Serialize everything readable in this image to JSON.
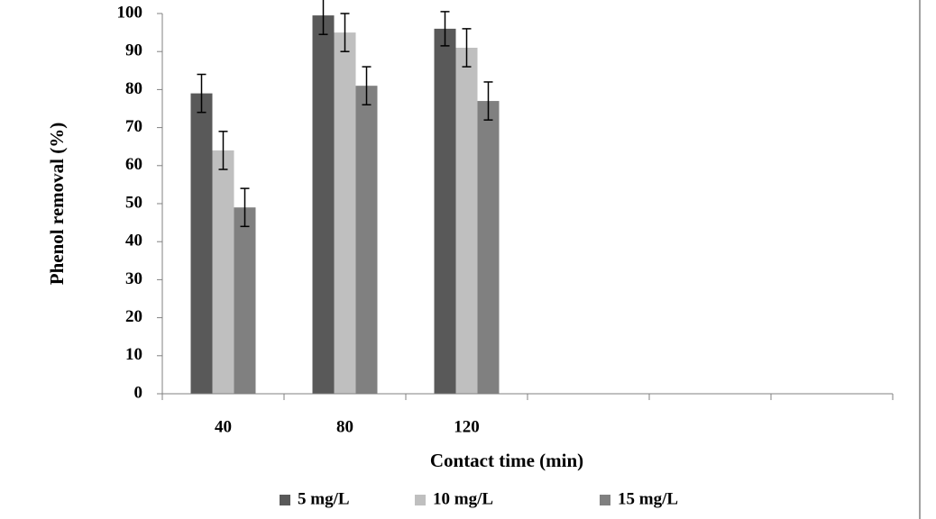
{
  "chart_data": {
    "type": "bar",
    "y_label": "Phenol removal (%)",
    "x_label": "Contact time (min)",
    "categories": [
      "40",
      "80",
      "120",
      null,
      null,
      null
    ],
    "series": [
      {
        "name": "5 mg/L",
        "color": "#595959",
        "values": [
          79,
          99.5,
          96,
          null,
          null,
          null
        ],
        "errors": [
          5,
          5,
          4.5,
          null,
          null,
          null
        ]
      },
      {
        "name": "10 mg/L",
        "color": "#bfbfbf",
        "values": [
          64,
          95,
          91,
          null,
          null,
          null
        ],
        "errors": [
          5,
          5,
          5,
          null,
          null,
          null
        ]
      },
      {
        "name": "15 mg/L",
        "color": "#808080",
        "values": [
          49,
          81,
          77,
          null,
          null,
          null
        ],
        "errors": [
          5,
          5,
          5,
          null,
          null,
          null
        ]
      }
    ],
    "ylim": [
      0,
      100
    ],
    "yticks": [
      0,
      10,
      20,
      30,
      40,
      50,
      60,
      70,
      80,
      90,
      100
    ],
    "legend": "bottom"
  }
}
